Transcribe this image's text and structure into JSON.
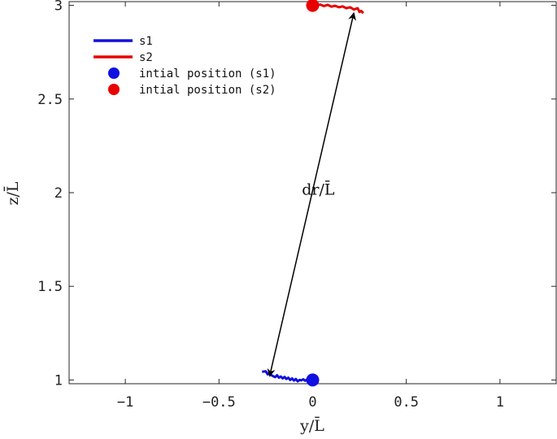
{
  "chart_data": {
    "type": "line",
    "xlabel": "y/L̄",
    "ylabel": "z/L̄",
    "xlim": [
      -1.3,
      1.3
    ],
    "ylim": [
      0.98,
      3.02
    ],
    "x_ticks": [
      -1,
      -0.5,
      0,
      0.5,
      1
    ],
    "x_tick_labels": [
      "−1",
      "−0.5",
      "0",
      "0.5",
      "1"
    ],
    "y_ticks": [
      1,
      1.5,
      2,
      2.5,
      3
    ],
    "y_tick_labels": [
      "1",
      "1.5",
      "2",
      "2.5",
      "3"
    ],
    "grid": false,
    "legend_position": "top-left",
    "series": [
      {
        "name": "s1",
        "color": "#1010e0",
        "x": [
          -0.27,
          -0.25,
          -0.24,
          -0.23,
          -0.22,
          -0.21,
          -0.2,
          -0.19,
          -0.18,
          -0.17,
          -0.16,
          -0.15,
          -0.14,
          -0.13,
          -0.12,
          -0.11,
          -0.1,
          -0.09,
          -0.08,
          -0.07,
          -0.06,
          -0.05,
          -0.04,
          -0.03,
          -0.02,
          -0.01,
          0.0
        ],
        "y": [
          1.044,
          1.046,
          1.03,
          1.04,
          1.025,
          1.02,
          1.015,
          1.025,
          1.012,
          1.018,
          1.008,
          1.016,
          1.005,
          1.012,
          1.0,
          1.008,
          0.997,
          1.005,
          0.993,
          1.0,
          0.998,
          1.004,
          0.996,
          1.002,
          0.996,
          1.0,
          1.0
        ]
      },
      {
        "name": "s2",
        "color": "#e80000",
        "x": [
          0.0,
          0.02,
          0.04,
          0.06,
          0.08,
          0.1,
          0.12,
          0.14,
          0.16,
          0.18,
          0.2,
          0.22,
          0.24,
          0.25,
          0.26,
          0.27
        ],
        "y": [
          3.0,
          2.998,
          3.005,
          2.996,
          3.003,
          2.993,
          2.998,
          2.99,
          2.995,
          2.985,
          2.99,
          2.978,
          2.985,
          2.965,
          2.97,
          2.958
        ]
      }
    ],
    "markers": [
      {
        "name": "intial position (s1)",
        "x": 0.0,
        "y": 1.0,
        "color": "#1010e0"
      },
      {
        "name": "intial position (s2)",
        "x": 0.0,
        "y": 3.0,
        "color": "#e80000"
      }
    ],
    "annotations": [
      {
        "text": "dr/L̄",
        "x": 0.03,
        "y": 2.02,
        "arrow_from": [
          -0.23,
          1.02
        ],
        "arrow_to": [
          0.22,
          2.96
        ]
      }
    ]
  }
}
